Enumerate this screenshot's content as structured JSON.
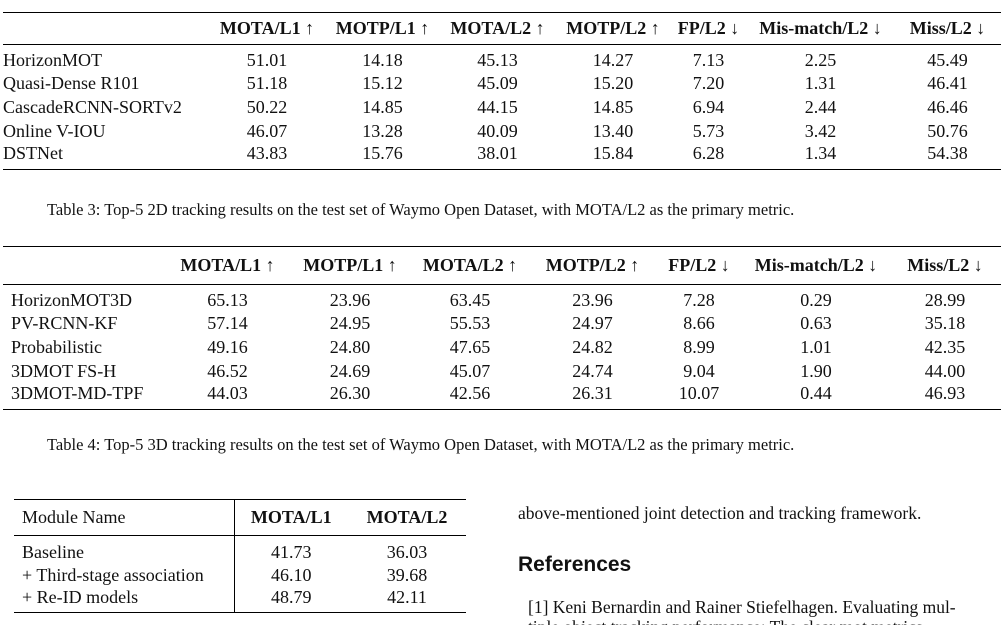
{
  "table3": {
    "headers": [
      "",
      "MOTA/L1 ↑",
      "MOTP/L1 ↑",
      "MOTA/L2 ↑",
      "MOTP/L2 ↑",
      "FP/L2 ↓",
      "Mis-match/L2 ↓",
      "Miss/L2 ↓"
    ],
    "rows": [
      [
        "HorizonMOT",
        "51.01",
        "14.18",
        "45.13",
        "14.27",
        "7.13",
        "2.25",
        "45.49"
      ],
      [
        "Quasi-Dense R101",
        "51.18",
        "15.12",
        "45.09",
        "15.20",
        "7.20",
        "1.31",
        "46.41"
      ],
      [
        "CascadeRCNN-SORTv2",
        "50.22",
        "14.85",
        "44.15",
        "14.85",
        "6.94",
        "2.44",
        "46.46"
      ],
      [
        "Online V-IOU",
        "46.07",
        "13.28",
        "40.09",
        "13.40",
        "5.73",
        "3.42",
        "50.76"
      ],
      [
        "DSTNet",
        "43.83",
        "15.76",
        "38.01",
        "15.84",
        "6.28",
        "1.34",
        "54.38"
      ]
    ],
    "caption": "Table 3: Top-5 2D tracking results on the test set of Waymo Open Dataset, with MOTA/L2 as the primary metric."
  },
  "table4": {
    "headers": [
      "",
      "MOTA/L1 ↑",
      "MOTP/L1 ↑",
      "MOTA/L2 ↑",
      "MOTP/L2 ↑",
      "FP/L2 ↓",
      "Mis-match/L2 ↓",
      "Miss/L2 ↓"
    ],
    "rows": [
      [
        "HorizonMOT3D",
        "65.13",
        "23.96",
        "63.45",
        "23.96",
        "7.28",
        "0.29",
        "28.99"
      ],
      [
        "PV-RCNN-KF",
        "57.14",
        "24.95",
        "55.53",
        "24.97",
        "8.66",
        "0.63",
        "35.18"
      ],
      [
        "Probabilistic",
        "49.16",
        "24.80",
        "47.65",
        "24.82",
        "8.99",
        "1.01",
        "42.35"
      ],
      [
        "3DMOT FS-H",
        "46.52",
        "24.69",
        "45.07",
        "24.74",
        "9.04",
        "1.90",
        "44.00"
      ],
      [
        "3DMOT-MD-TPF",
        "44.03",
        "26.30",
        "42.56",
        "26.31",
        "10.07",
        "0.44",
        "46.93"
      ]
    ],
    "caption": "Table 4: Top-5 3D tracking results on the test set of Waymo Open Dataset, with MOTA/L2 as the primary metric."
  },
  "table5": {
    "headers": [
      "Module Name",
      "MOTA/L1",
      "MOTA/L2"
    ],
    "rows": [
      [
        "Baseline",
        "41.73",
        "36.03"
      ],
      [
        "+ Third-stage association",
        "46.10",
        "39.68"
      ],
      [
        "+ Re-ID models",
        "48.79",
        "42.11"
      ]
    ]
  },
  "body_text": "above-mentioned joint detection and tracking framework.",
  "references": {
    "heading": "References",
    "ref1": "[1] Keni Bernardin and Rainer Stiefelhagen.  Evaluating mul-",
    "ref1_next": "tiple object tracking performance: The clear mot metrics."
  }
}
